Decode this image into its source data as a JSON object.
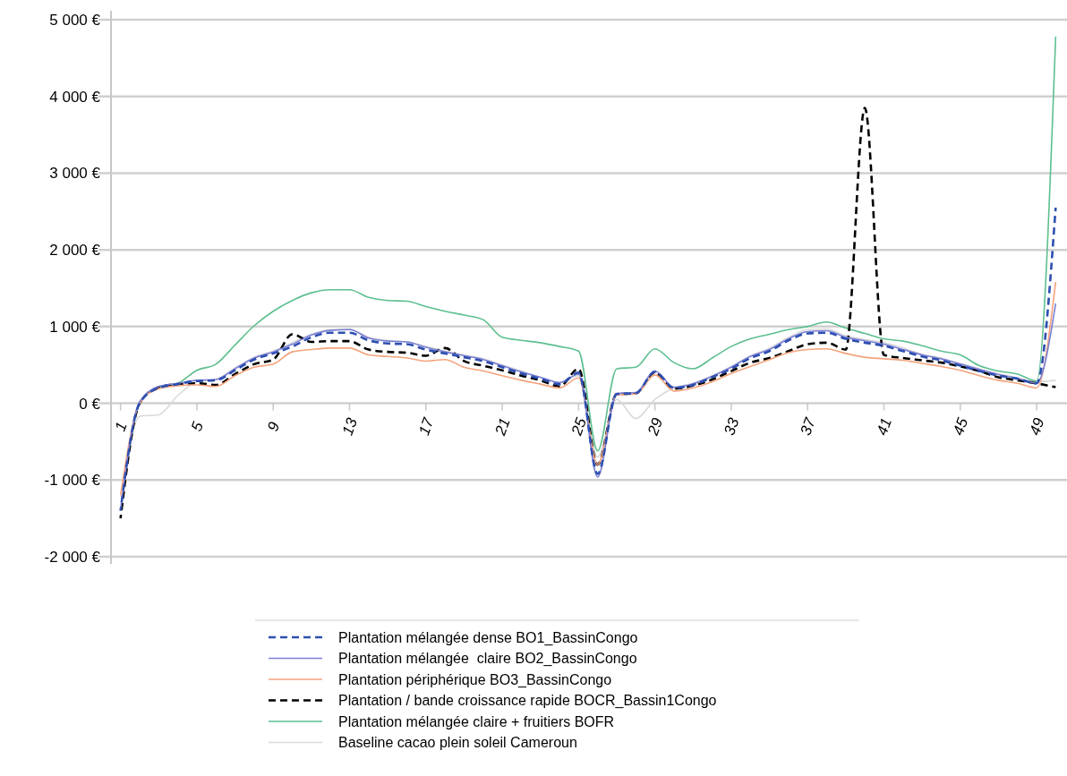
{
  "chart_data": {
    "type": "line",
    "categories": [
      "1",
      null,
      null,
      null,
      "5",
      null,
      null,
      null,
      "9",
      null,
      null,
      null,
      "13",
      null,
      null,
      null,
      "17",
      null,
      null,
      null,
      "21",
      null,
      null,
      null,
      "25",
      null,
      null,
      null,
      "29",
      null,
      null,
      null,
      "33",
      null,
      null,
      null,
      "37",
      null,
      null,
      null,
      "41",
      null,
      null,
      null,
      "45",
      null,
      null,
      null,
      "49",
      null
    ],
    "series": [
      {
        "name": "Plantation mélangée dense BO1_BassinCongo",
        "color": "#2e4fb0",
        "line_style": "dashed",
        "values": [
          -1400,
          0,
          200,
          250,
          290,
          300,
          430,
          570,
          650,
          740,
          860,
          920,
          920,
          820,
          780,
          770,
          700,
          650,
          600,
          550,
          470,
          390,
          320,
          250,
          400,
          -920,
          120,
          130,
          410,
          200,
          240,
          340,
          450,
          590,
          680,
          820,
          910,
          920,
          840,
          790,
          750,
          680,
          610,
          560,
          490,
          420,
          360,
          320,
          260,
          2550
        ]
      },
      {
        "name": "Plantation mélangée  claire BO2_BassinCongo",
        "color": "#7b80d6",
        "line_style": "solid",
        "values": [
          -1380,
          20,
          220,
          260,
          300,
          310,
          450,
          590,
          670,
          770,
          890,
          950,
          960,
          850,
          810,
          800,
          730,
          670,
          620,
          570,
          490,
          410,
          340,
          270,
          380,
          -960,
          130,
          140,
          420,
          210,
          255,
          350,
          470,
          610,
          700,
          840,
          935,
          945,
          860,
          815,
          770,
          700,
          630,
          580,
          510,
          440,
          375,
          325,
          265,
          1300
        ]
      },
      {
        "name": "Plantation périphérique BO3_BassinCongo",
        "color": "#f4a37c",
        "line_style": "solid",
        "values": [
          -1200,
          0,
          190,
          230,
          240,
          220,
          360,
          470,
          510,
          670,
          700,
          720,
          720,
          630,
          610,
          590,
          550,
          570,
          470,
          420,
          360,
          300,
          250,
          200,
          330,
          -800,
          110,
          120,
          370,
          160,
          200,
          280,
          390,
          480,
          570,
          660,
          700,
          710,
          650,
          600,
          580,
          560,
          520,
          480,
          430,
          360,
          300,
          260,
          200,
          1580
        ]
      },
      {
        "name": "Plantation / bande croissance rapide BOCR_Bassin1Congo",
        "color": "#000000",
        "line_style": "dashed",
        "values": [
          -1500,
          0,
          210,
          250,
          260,
          240,
          380,
          510,
          570,
          900,
          800,
          810,
          810,
          700,
          670,
          660,
          620,
          720,
          550,
          490,
          430,
          360,
          300,
          220,
          450,
          -800,
          120,
          130,
          400,
          190,
          230,
          310,
          420,
          530,
          590,
          680,
          770,
          790,
          700,
          3850,
          630,
          590,
          560,
          530,
          480,
          420,
          340,
          300,
          260,
          210
        ]
      },
      {
        "name": "Plantation mélangée claire + fruitiers BOFR",
        "color": "#5dbf8f",
        "line_style": "solid",
        "values": [
          null,
          null,
          210,
          260,
          430,
          510,
          760,
          1010,
          1200,
          1340,
          1440,
          1480,
          1480,
          1380,
          1340,
          1330,
          1260,
          1200,
          1150,
          1090,
          860,
          820,
          790,
          740,
          680,
          -620,
          450,
          470,
          710,
          530,
          450,
          590,
          740,
          840,
          900,
          960,
          1000,
          1060,
          980,
          910,
          840,
          810,
          750,
          680,
          630,
          490,
          420,
          380,
          290,
          4780
        ]
      },
      {
        "name": "Baseline cacao plein soleil Cameroun",
        "color": "#d9d9d9",
        "line_style": "solid",
        "values": [
          -1400,
          -170,
          -150,
          100,
          280,
          310,
          460,
          600,
          680,
          790,
          900,
          960,
          970,
          860,
          820,
          800,
          740,
          680,
          630,
          580,
          500,
          420,
          340,
          270,
          360,
          -700,
          50,
          -200,
          50,
          200,
          260,
          360,
          480,
          620,
          720,
          860,
          960,
          970,
          880,
          830,
          790,
          720,
          640,
          590,
          520,
          450,
          385,
          330,
          280,
          300
        ]
      }
    ],
    "ylim": [
      -2000,
      5000
    ],
    "yticks": [
      {
        "value": -2000,
        "label": "-2 000 €"
      },
      {
        "value": -1000,
        "label": "-1 000 €"
      },
      {
        "value": 0,
        "label": "0 €"
      },
      {
        "value": 1000,
        "label": "1 000 €"
      },
      {
        "value": 2000,
        "label": "2 000 €"
      },
      {
        "value": 3000,
        "label": "3 000 €"
      },
      {
        "value": 4000,
        "label": "4 000 €"
      },
      {
        "value": 5000,
        "label": "5 000 €"
      }
    ],
    "grid": "y",
    "legend": "bottom"
  }
}
